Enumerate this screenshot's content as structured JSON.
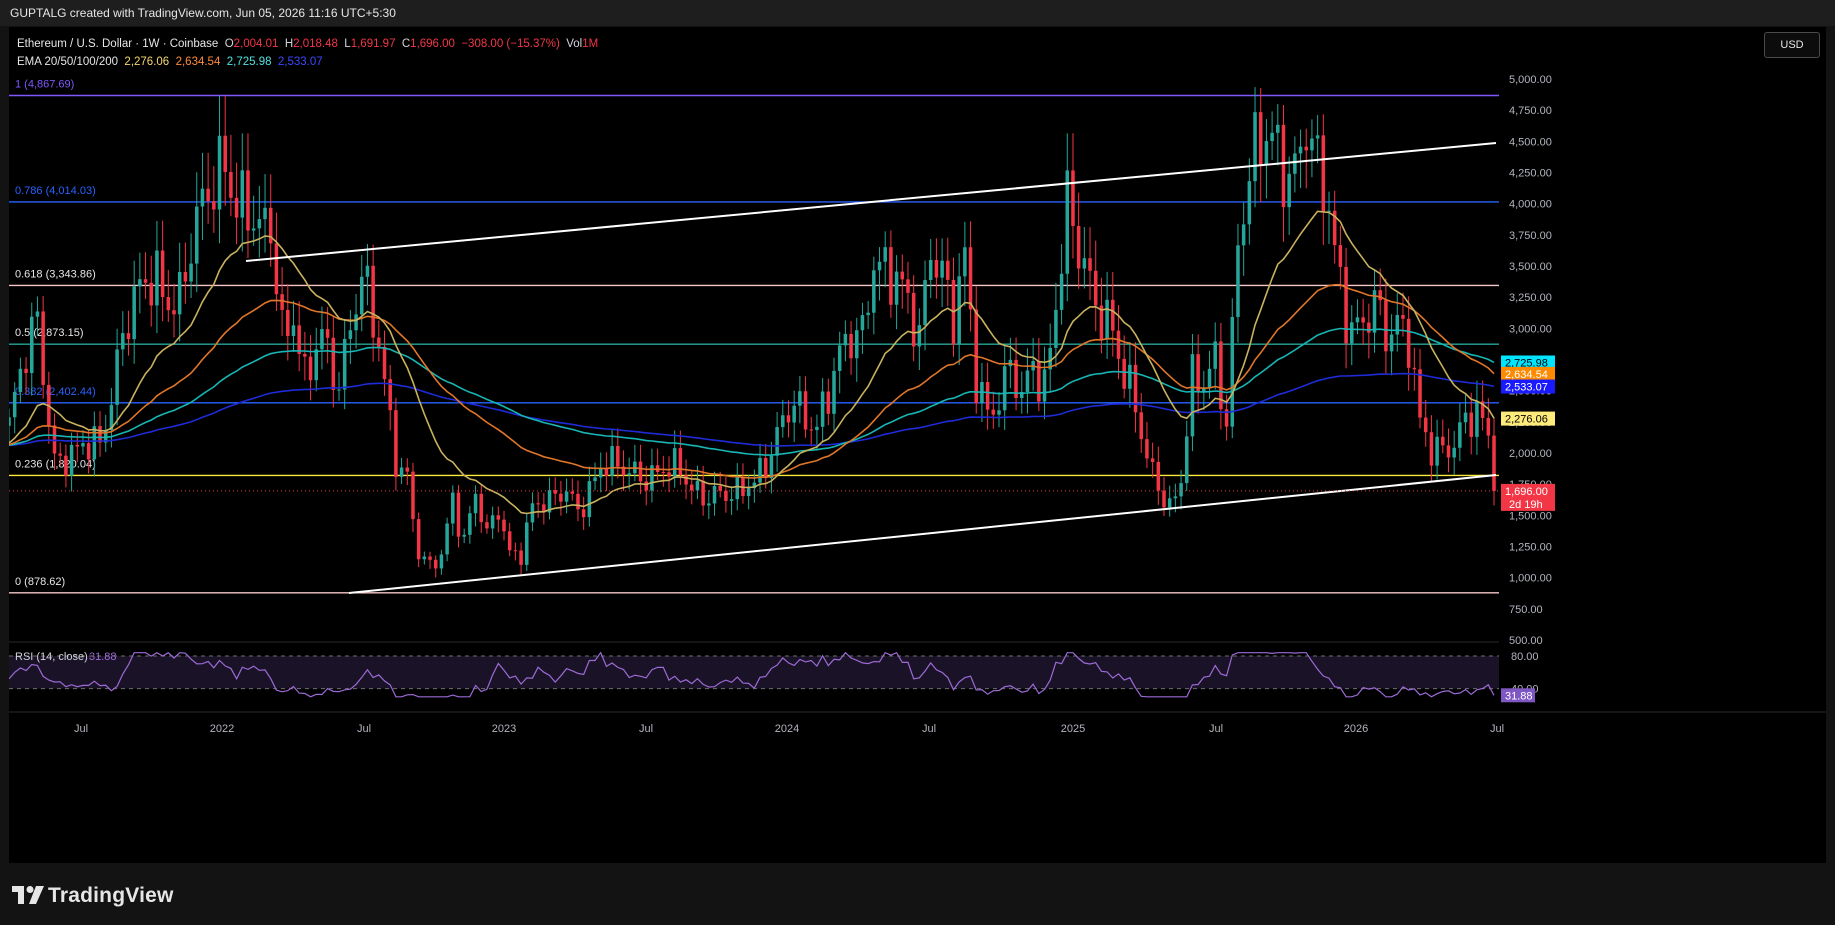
{
  "header": {
    "title": "GUPTALG created with TradingView.com, Jun 05, 2026 11:16 UTC+5:30"
  },
  "legend": {
    "symbol": "Ethereum / U.S. Dollar · 1W · Coinbase",
    "o_label": "O",
    "o": "2,004.01",
    "h_label": "H",
    "h": "2,018.48",
    "l_label": "L",
    "l": "1,691.97",
    "c_label": "C",
    "c": "1,696.00",
    "chg": "−308.00 (−15.37%)",
    "vol_label": "Vol",
    "vol": "1M",
    "ema_label": "EMA 20/50/100/200",
    "ema20": "2,276.06",
    "ema50": "2,634.54",
    "ema100": "2,725.98",
    "ema200": "2,533.07"
  },
  "currency_button": "USD",
  "brand": "TradingView",
  "colors": {
    "up": "#26a69a",
    "down": "#f23645",
    "ema20": "#c9b25e",
    "ema50": "#e0762a",
    "ema100": "#18b5b5",
    "ema200": "#1e2bd6",
    "trendline": "#ffffff",
    "rsi": "#9c6bd6"
  },
  "chart_data": {
    "type": "candlestick",
    "title": "Ethereum / U.S. Dollar · 1W · Coinbase",
    "x_ticks": [
      "Jul",
      "2022",
      "Jul",
      "2023",
      "Jul",
      "2024",
      "Jul",
      "2025",
      "Jul",
      "2026",
      "Jul"
    ],
    "y_ticks": [
      "5,000.00",
      "4,750.00",
      "4,500.00",
      "4,250.00",
      "4,000.00",
      "3,750.00",
      "3,500.00",
      "3,250.00",
      "3,000.00",
      "2,750.00",
      "2,500.00",
      "2,250.00",
      "2,000.00",
      "1,750.00",
      "1,500.00",
      "1,250.00",
      "1,000.00",
      "750.00",
      "500.00"
    ],
    "y_tick_values": [
      5000,
      4750,
      4500,
      4250,
      4000,
      3750,
      3500,
      3250,
      3000,
      2750,
      2500,
      2250,
      2000,
      1750,
      1500,
      1250,
      1000,
      750,
      500
    ],
    "ylim": [
      450,
      5250
    ],
    "fib_levels": [
      {
        "label": "1 (4,867.69)",
        "value": 4867.69,
        "color": "#7e57ff"
      },
      {
        "label": "0.786 (4,014.03)",
        "value": 4014.03,
        "color": "#2962ff"
      },
      {
        "label": "0.618 (3,343.86)",
        "value": 3343.86,
        "color": "#f7c6c9"
      },
      {
        "label": "0.5 (2,873.15)",
        "value": 2873.15,
        "color": "#26a69a"
      },
      {
        "label": "0.382 (2,402.44)",
        "value": 2402.44,
        "color": "#2962ff"
      },
      {
        "label": "0.236 (1,820.04)",
        "value": 1820.04,
        "color": "#ffeb3b"
      },
      {
        "label": "0 (878.62)",
        "value": 878.62,
        "color": "#f7c6c9"
      }
    ],
    "last_price": {
      "value": 1696.0,
      "label": "1,696.00",
      "countdown": "2d 19h"
    },
    "ema_badges": [
      {
        "label": "2,725.98",
        "value": 2725.98,
        "bg": "#00e5ff",
        "fg": "#000000"
      },
      {
        "label": "2,634.54",
        "value": 2634.54,
        "bg": "#ff8a00",
        "fg": "#ffffff"
      },
      {
        "label": "2,533.07",
        "value": 2533.07,
        "bg": "#1a1aff",
        "fg": "#ffffff"
      },
      {
        "label": "2,276.06",
        "value": 2276.06,
        "bg": "#ffeb7a",
        "fg": "#000000"
      }
    ],
    "price_path": [
      [
        0,
        2220
      ],
      [
        5,
        3050
      ],
      [
        8,
        2000
      ],
      [
        12,
        1950
      ],
      [
        16,
        2100
      ],
      [
        20,
        3000
      ],
      [
        26,
        3400
      ],
      [
        30,
        3300
      ],
      [
        36,
        4150
      ],
      [
        38,
        4500
      ],
      [
        40,
        4100
      ],
      [
        44,
        3650
      ],
      [
        46,
        3800
      ],
      [
        48,
        3050
      ],
      [
        50,
        3200
      ],
      [
        52,
        2550
      ],
      [
        55,
        2850
      ],
      [
        58,
        2600
      ],
      [
        60,
        3150
      ],
      [
        62,
        3400
      ],
      [
        64,
        3000
      ],
      [
        66,
        2500
      ],
      [
        68,
        2000
      ],
      [
        70,
        1850
      ],
      [
        72,
        1200
      ],
      [
        74,
        1050
      ],
      [
        76,
        1150
      ],
      [
        78,
        1650
      ],
      [
        80,
        1350
      ],
      [
        82,
        1700
      ],
      [
        84,
        1300
      ],
      [
        86,
        1500
      ],
      [
        88,
        1200
      ],
      [
        90,
        1250
      ],
      [
        92,
        1600
      ],
      [
        95,
        1550
      ],
      [
        98,
        1700
      ],
      [
        100,
        1600
      ],
      [
        104,
        1850
      ],
      [
        106,
        1850
      ],
      [
        110,
        1900
      ],
      [
        114,
        1800
      ],
      [
        118,
        1850
      ],
      [
        122,
        1700
      ],
      [
        126,
        1600
      ],
      [
        128,
        1650
      ],
      [
        130,
        1800
      ],
      [
        134,
        2000
      ],
      [
        138,
        2350
      ],
      [
        142,
        2300
      ],
      [
        146,
        2700
      ],
      [
        150,
        3000
      ],
      [
        152,
        3700
      ],
      [
        154,
        3500
      ],
      [
        156,
        3300
      ],
      [
        158,
        3100
      ],
      [
        160,
        2950
      ],
      [
        162,
        3800
      ],
      [
        164,
        3500
      ],
      [
        166,
        3000
      ],
      [
        168,
        3450
      ],
      [
        170,
        2600
      ],
      [
        172,
        2400
      ],
      [
        174,
        2500
      ],
      [
        176,
        2650
      ],
      [
        178,
        2350
      ],
      [
        180,
        2700
      ],
      [
        182,
        2600
      ],
      [
        184,
        3300
      ],
      [
        186,
        3950
      ],
      [
        188,
        3500
      ],
      [
        190,
        3300
      ],
      [
        194,
        3100
      ],
      [
        196,
        2600
      ],
      [
        198,
        2300
      ],
      [
        200,
        1900
      ],
      [
        202,
        1800
      ],
      [
        204,
        1600
      ],
      [
        206,
        1800
      ],
      [
        208,
        2500
      ],
      [
        210,
        2500
      ],
      [
        212,
        2800
      ],
      [
        214,
        2350
      ],
      [
        216,
        3700
      ],
      [
        218,
        4100
      ],
      [
        220,
        4400
      ],
      [
        222,
        4600
      ],
      [
        224,
        4450
      ],
      [
        226,
        4300
      ],
      [
        228,
        4500
      ],
      [
        230,
        4150
      ],
      [
        232,
        4000
      ],
      [
        234,
        3450
      ],
      [
        236,
        3050
      ],
      [
        238,
        2950
      ],
      [
        240,
        3100
      ],
      [
        242,
        2950
      ],
      [
        244,
        3150
      ],
      [
        246,
        3000
      ],
      [
        248,
        2200
      ],
      [
        250,
        1950
      ],
      [
        252,
        2000
      ],
      [
        254,
        2150
      ],
      [
        256,
        2350
      ],
      [
        258,
        2300
      ],
      [
        260,
        2050
      ],
      [
        261,
        1696
      ]
    ],
    "rsi": {
      "label": "RSI (14, close)",
      "value": "31.88",
      "levels": [
        "80.00",
        "40.00"
      ]
    }
  }
}
